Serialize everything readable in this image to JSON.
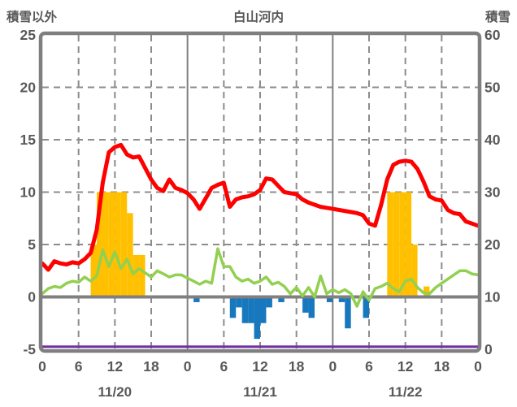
{
  "header": {
    "left_label": "積雪以外",
    "title": "白山河内",
    "right_label": "積雪"
  },
  "chart_data": {
    "type": "composite",
    "title": "白山河内",
    "left_axis": {
      "label": "積雪以外",
      "min": -5,
      "max": 25,
      "ticks": [
        25,
        20,
        15,
        10,
        5,
        0,
        -5
      ]
    },
    "right_axis": {
      "label": "積雪",
      "min": 0,
      "max": 60,
      "ticks": [
        60,
        50,
        40,
        30,
        20,
        10,
        0
      ]
    },
    "x_axis": {
      "total_hours": 72,
      "days": [
        "11/20",
        "11/21",
        "11/22"
      ],
      "hour_tick_labels": [
        "0",
        "6",
        "12",
        "18"
      ],
      "final_tick_label": "0",
      "date_center_hour": 12
    },
    "grid": {
      "dashed_horizontal_left_values": [
        20,
        15,
        10,
        5
      ],
      "zero_line_left_value": 0,
      "dashed_vertical_hours": [
        6,
        12,
        18,
        30,
        36,
        42,
        54,
        60,
        66
      ],
      "solid_vertical_hours": [
        24,
        48
      ],
      "frame_color": "#7F7F7F",
      "grid_color": "#8C8C8C",
      "zero_line_color": "#808080",
      "text_color": "#595959"
    },
    "series": [
      {
        "id": "hourly-bars-positive",
        "type": "bar",
        "axis": "left",
        "color": "#FFC000",
        "bar_width_hours": 1,
        "points": [
          [
            8,
            5
          ],
          [
            9,
            10
          ],
          [
            10,
            10
          ],
          [
            11,
            10
          ],
          [
            12,
            10
          ],
          [
            13,
            10
          ],
          [
            14,
            8
          ],
          [
            15,
            4
          ],
          [
            16,
            4
          ],
          [
            57,
            10
          ],
          [
            58,
            10
          ],
          [
            59,
            10
          ],
          [
            60,
            10
          ],
          [
            61,
            5
          ],
          [
            63,
            1
          ]
        ]
      },
      {
        "id": "hourly-bars-negative",
        "type": "bar",
        "axis": "left",
        "color": "#1878BE",
        "bar_width_hours": 1,
        "points": [
          [
            25,
            -0.5
          ],
          [
            31,
            -2
          ],
          [
            32,
            -1
          ],
          [
            33,
            -2.5
          ],
          [
            34,
            -2.5
          ],
          [
            35,
            -4
          ],
          [
            36,
            -2.5
          ],
          [
            37,
            -1
          ],
          [
            39,
            -0.5
          ],
          [
            43,
            -1.5
          ],
          [
            44,
            -2
          ],
          [
            47,
            -0.5
          ],
          [
            49,
            -0.5
          ],
          [
            50,
            -3
          ],
          [
            53,
            -2
          ]
        ]
      },
      {
        "id": "green-line",
        "type": "line",
        "axis": "left",
        "color": "#92D050",
        "stroke_width": 3.5,
        "x_step_hours": 1,
        "values": [
          0.3,
          0.8,
          1.0,
          0.9,
          1.3,
          1.5,
          1.4,
          1.9,
          1.5,
          2.0,
          4.5,
          2.9,
          4.3,
          2.7,
          3.6,
          2.2,
          2.7,
          2.3,
          1.9,
          2.5,
          2.2,
          1.9,
          2.1,
          2.1,
          1.8,
          1.5,
          1.2,
          1.5,
          1.3,
          4.6,
          2.9,
          2.9,
          1.9,
          1.5,
          1.7,
          1.3,
          1.5,
          1.9,
          1.2,
          1.4,
          1.0,
          0.3,
          0.9,
          0.1,
          0.9,
          0.0,
          2.0,
          0.3,
          0.7,
          0.4,
          0.7,
          0.3,
          -0.9,
          0.5,
          -0.3,
          0.8,
          1.0,
          1.3,
          0.8,
          0.5,
          1.5,
          1.7,
          0.9,
          0.4,
          0.3,
          0.9,
          1.3,
          1.7,
          2.1,
          2.5,
          2.5,
          2.2,
          2.1
        ]
      },
      {
        "id": "red-line",
        "type": "line",
        "axis": "left",
        "color": "#FF0000",
        "stroke_width": 5,
        "x_step_hours": 1,
        "values": [
          3.2,
          2.6,
          3.4,
          3.2,
          3.1,
          3.3,
          3.2,
          3.6,
          4.2,
          6.4,
          10.9,
          13.8,
          14.3,
          14.5,
          13.6,
          13.3,
          13.4,
          12.3,
          11.2,
          10.4,
          10.1,
          11.2,
          10.4,
          10.2,
          9.9,
          9.3,
          8.4,
          9.4,
          10.4,
          10.7,
          10.9,
          8.6,
          9.3,
          9.5,
          9.6,
          9.8,
          10.2,
          11.3,
          11.2,
          10.6,
          10.0,
          9.9,
          9.8,
          9.3,
          9.0,
          8.8,
          8.6,
          8.5,
          8.4,
          8.3,
          8.2,
          8.1,
          8.0,
          7.8,
          7.0,
          6.8,
          8.8,
          11.2,
          12.6,
          12.9,
          13.0,
          12.9,
          12.2,
          11.0,
          9.6,
          9.3,
          9.2,
          8.3,
          8.0,
          7.9,
          7.2,
          7.0,
          6.8
        ]
      },
      {
        "id": "purple-line",
        "type": "line",
        "axis": "right",
        "color": "#7030A0",
        "stroke_width": 3,
        "constant": 0.5,
        "x_range_hours": [
          0,
          72
        ]
      }
    ]
  }
}
